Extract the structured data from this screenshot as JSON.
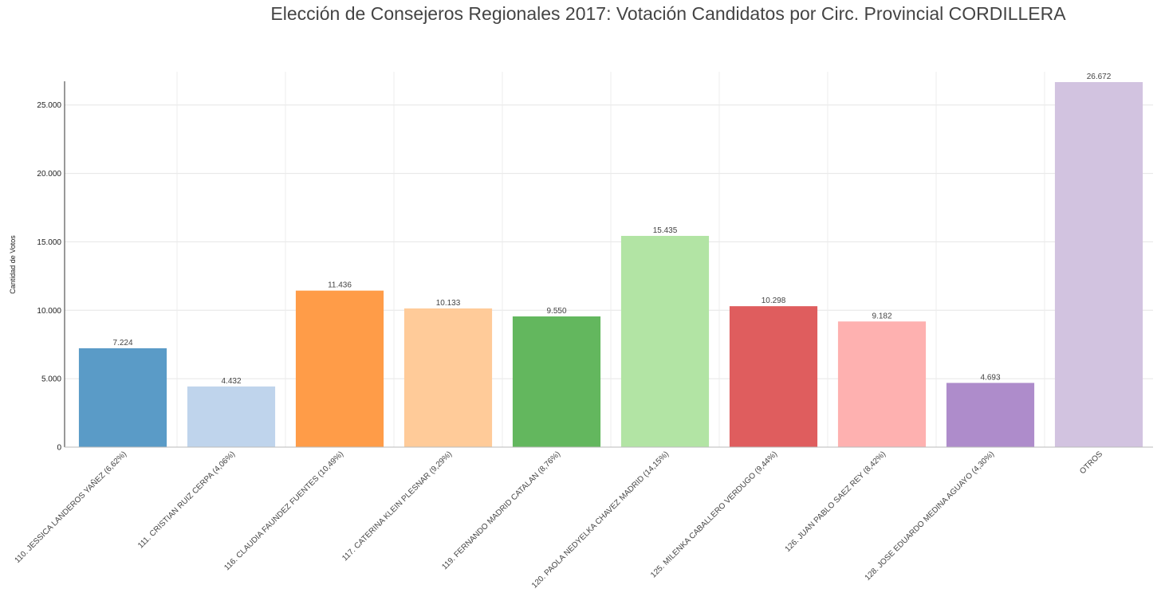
{
  "chart_data": {
    "type": "bar",
    "title": "Elección de Consejeros Regionales 2017: Votación Candidatos por Circ. Provincial CORDILLERA",
    "xlabel": "",
    "ylabel": "Cantidad de Votos",
    "ylim": [
      0,
      26672
    ],
    "yticks": [
      0,
      5000,
      10000,
      15000,
      20000,
      25000
    ],
    "ytick_labels": [
      "0",
      "5.000",
      "10.000",
      "15.000",
      "20.000",
      "25.000"
    ],
    "grid": true,
    "categories": [
      "110. JESSICA LANDEROS YAÑEZ (6,62%)",
      "111. CRISTIAN RUIZ CERPA (4,06%)",
      "116. CLAUDIA FAUNDEZ FUENTES (10,49%)",
      "117. CATERINA KLEIN PLESNAR (9,29%)",
      "119. FERNANDO MADRID CATALAN (8,76%)",
      "120. PAOLA NEDYELKA CHAVEZ MADRID (14,15%)",
      "125. MILENKA CABALLERO VERDUGO (9,44%)",
      "126. JUAN PABLO SAEZ REY (8,42%)",
      "128. JOSE EDUARDO MEDINA AGUAYO (4,30%)",
      "OTROS"
    ],
    "values": [
      7224,
      4432,
      11436,
      10133,
      9550,
      15435,
      10298,
      9182,
      4693,
      26672
    ],
    "value_labels": [
      "7.224",
      "4.432",
      "11.436",
      "10.133",
      "9.550",
      "15.435",
      "10.298",
      "9.182",
      "4.693",
      "26.672"
    ],
    "colors": [
      "#5a9bc7",
      "#bfd4ec",
      "#ff9c48",
      "#ffcb99",
      "#63b75e",
      "#b2e4a4",
      "#df5d5e",
      "#feb1b0",
      "#ae8ccb",
      "#d2c3e0"
    ]
  }
}
